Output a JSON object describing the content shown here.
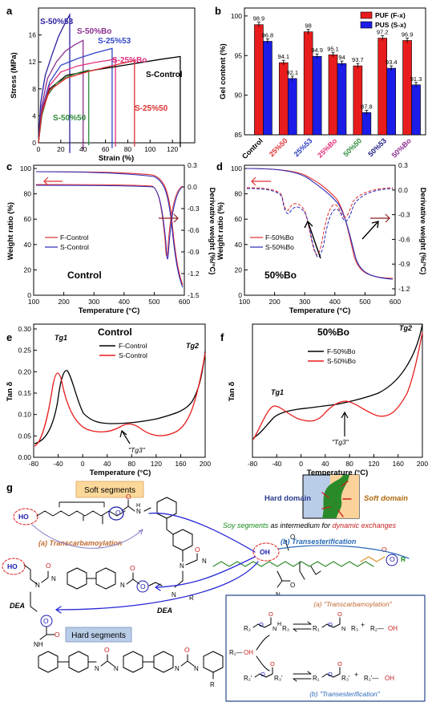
{
  "panels": {
    "a": {
      "label": "a",
      "xlabel": "Strain (%)",
      "ylabel": "Stress (MPa)",
      "xticks": [
        "0",
        "20",
        "40",
        "60",
        "80",
        "100",
        "120"
      ],
      "yticks": [
        "0",
        "4",
        "8",
        "12",
        "16"
      ],
      "curves": [
        {
          "name": "S-50%53",
          "color": "#2a1fa0",
          "labelColor": "#2a1fa0",
          "x": [
            0,
            2,
            6,
            12,
            18,
            24,
            28
          ],
          "y": [
            0,
            6,
            10,
            13,
            15.8,
            17.8,
            19
          ]
        },
        {
          "name": "S-50%Bo",
          "color": "#8b2f8f",
          "labelColor": "#8b2f8f",
          "x": [
            0,
            3,
            8,
            16,
            24,
            32,
            40
          ],
          "y": [
            0,
            5.5,
            9.5,
            12,
            13.6,
            14.5,
            15.2
          ]
        },
        {
          "name": "S-25%53",
          "color": "#3046c8",
          "labelColor": "#3046c8",
          "x": [
            0,
            3,
            10,
            20,
            35,
            50,
            66
          ],
          "y": [
            0,
            5,
            9,
            11.5,
            12.5,
            13.3,
            14.0
          ]
        },
        {
          "name": "S-25%Bo",
          "color": "#e0307a",
          "labelColor": "#e0307a",
          "x": [
            0,
            3,
            10,
            20,
            35,
            50,
            69
          ],
          "y": [
            0,
            4.8,
            8.5,
            10.5,
            11.4,
            11.9,
            12.4
          ]
        },
        {
          "name": "S-Control",
          "color": "#000000",
          "labelColor": "#000000",
          "x": [
            0,
            3,
            10,
            25,
            50,
            80,
            110,
            127
          ],
          "y": [
            0,
            4.5,
            8,
            10,
            10.8,
            11.6,
            12.4,
            12.8
          ]
        },
        {
          "name": "S-50%50",
          "color": "#2e8b3a",
          "labelColor": "#2e8b3a",
          "x": [
            0,
            3,
            8,
            16,
            26,
            36,
            45
          ],
          "y": [
            0,
            4,
            7,
            8.8,
            9.8,
            10.4,
            10.8
          ]
        },
        {
          "name": "S-25%50",
          "color": "#e03030",
          "labelColor": "#e03030",
          "x": [
            0,
            3,
            10,
            25,
            45,
            65,
            86
          ],
          "y": [
            0,
            4.4,
            7.8,
            9.6,
            10.6,
            11.4,
            12.2
          ]
        }
      ]
    },
    "b": {
      "label": "b",
      "ylabel": "Gel content (%)",
      "yticks": [
        "85",
        "90",
        "95",
        "100"
      ],
      "legend": [
        "PUF (F-x)",
        "PUS (S-x)"
      ],
      "colors": {
        "F": "#e81c1c",
        "S": "#1c1ce8"
      },
      "categories": [
        {
          "label": "Control",
          "color": "#000000",
          "F": 98.9,
          "S": 96.8
        },
        {
          "label": "25%50",
          "color": "#e03030",
          "F": 94.1,
          "S": 92.1
        },
        {
          "label": "25%53",
          "color": "#2a3bc0",
          "F": 98,
          "S": 94.9
        },
        {
          "label": "25%Bo",
          "color": "#e0307a",
          "F": 95.1,
          "S": 94
        },
        {
          "label": "50%50",
          "color": "#2e8b3a",
          "F": 93.7,
          "S": 87.8
        },
        {
          "label": "50%53",
          "color": "#1a1a80",
          "F": 97.2,
          "S": 93.4
        },
        {
          "label": "50%Bo",
          "color": "#8b2f8f",
          "F": 96.9,
          "S": 91.3
        }
      ],
      "barLabels": {
        "F": [
          "98.9",
          "94.1",
          "98",
          "95.1",
          "93.7",
          "97.2",
          "96.9"
        ],
        "S": [
          "96.8",
          "92.1",
          "94.9",
          "94",
          "87.8",
          "93.4",
          "91.3"
        ]
      }
    },
    "c": {
      "label": "c",
      "xlabel": "Temperature (°C)",
      "ylabel": "Weight ratio (%)",
      "y2label": "Derivative weight (%/°C)",
      "note": "Control",
      "xticks": [
        "100",
        "200",
        "300",
        "400",
        "500",
        "600"
      ],
      "yticks": [
        "0",
        "20",
        "40",
        "60",
        "80",
        "100"
      ],
      "y2ticks": [
        "0.3",
        "0.0",
        "-0.3",
        "-0.6",
        "-0.9",
        "-1.2",
        "-1.5"
      ],
      "legend": [
        "F-Control",
        "S-Control"
      ]
    },
    "d": {
      "label": "d",
      "xlabel": "Temperature (°C)",
      "ylabel": "Weight ratio (%)",
      "y2label": "Derivative weight (%/°C)",
      "note": "50%Bo",
      "xticks": [
        "100",
        "200",
        "300",
        "400",
        "500",
        "600"
      ],
      "yticks": [
        "0",
        "20",
        "40",
        "60",
        "80",
        "100"
      ],
      "y2ticks": [
        "0.3",
        "0.0",
        "-0.3",
        "-0.6",
        "-0.9",
        "-1.2"
      ],
      "legend": [
        "F-50%Bo",
        "S-50%Bo"
      ]
    },
    "e": {
      "label": "e",
      "xlabel": "Temperature (°C)",
      "ylabel": "Tan δ",
      "note": "Control",
      "xticks": [
        "-80",
        "-40",
        "0",
        "40",
        "80",
        "120",
        "160",
        "200"
      ],
      "yticks": [
        "0.00",
        "0.05",
        "0.10",
        "0.15",
        "0.20",
        "0.25",
        "0.30"
      ],
      "legend": [
        "F-Control",
        "S-Control"
      ],
      "tg1": "Tg1",
      "tg2": "Tg2",
      "tg3": "\"Tg3\""
    },
    "f": {
      "label": "f",
      "xlabel": "Temperature (°C)",
      "ylabel": "Tan δ",
      "note": "50%Bo",
      "xticks": [
        "-80",
        "-40",
        "0",
        "40",
        "80",
        "120",
        "160",
        "200"
      ],
      "legend": [
        "F-50%Bo",
        "S-50%Bo"
      ],
      "tg1": "Tg1",
      "tg2": "Tg2",
      "tg3": "\"Tg3\""
    },
    "g": {
      "label": "g",
      "soft_segments": "Soft segments",
      "hard_segments": "Hard segments",
      "hard_domain": "Hard domain",
      "soft_domain": "Soft domain",
      "soy_caption_a": "Soy segments",
      "soy_caption_b": " as intermedium for ",
      "soy_caption_c": "dynamic exchanges",
      "transcarbamoylation": "(a) Transcarbamoylation",
      "transesterification": "(b) Transesterification",
      "dea1": "DEA",
      "dea2": "DEA",
      "box_a": "(a) \"Transcarbamoylation\"",
      "box_b": "(b) \"Transesterification\""
    }
  }
}
